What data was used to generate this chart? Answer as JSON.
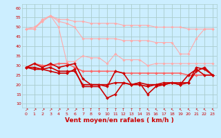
{
  "x": [
    0,
    1,
    2,
    3,
    4,
    5,
    6,
    7,
    8,
    9,
    10,
    11,
    12,
    13,
    14,
    15,
    16,
    17,
    18,
    19,
    20,
    21,
    22,
    23
  ],
  "series": [
    {
      "name": "line_top1",
      "color": "#ffaaaa",
      "linewidth": 0.8,
      "marker": "D",
      "markersize": 1.8,
      "values": [
        49,
        49,
        54,
        56,
        54,
        54,
        53,
        53,
        52,
        52,
        52,
        52,
        51,
        51,
        51,
        51,
        50,
        50,
        50,
        50,
        49,
        49,
        49,
        49
      ]
    },
    {
      "name": "line_top2",
      "color": "#ffaaaa",
      "linewidth": 0.8,
      "marker": "D",
      "markersize": 1.8,
      "values": [
        49,
        49,
        53,
        56,
        53,
        52,
        50,
        44,
        44,
        44,
        44,
        44,
        43,
        43,
        43,
        43,
        42,
        42,
        42,
        36,
        36,
        44,
        49,
        49
      ]
    },
    {
      "name": "line_top3",
      "color": "#ffaaaa",
      "linewidth": 0.8,
      "marker": "D",
      "markersize": 1.8,
      "values": [
        49,
        50,
        53,
        56,
        50,
        32,
        32,
        35,
        34,
        34,
        31,
        36,
        33,
        33,
        33,
        30,
        31,
        31,
        31,
        31,
        31,
        31,
        31,
        31
      ]
    },
    {
      "name": "line_mid1",
      "color": "#ff6666",
      "linewidth": 1.2,
      "marker": "D",
      "markersize": 2.0,
      "values": [
        29,
        31,
        30,
        30,
        31,
        31,
        29,
        27,
        27,
        27,
        27,
        27,
        26,
        26,
        26,
        26,
        26,
        26,
        26,
        26,
        25,
        25,
        25,
        25
      ]
    },
    {
      "name": "line_low1",
      "color": "#cc0000",
      "linewidth": 1.2,
      "marker": "D",
      "markersize": 2.0,
      "values": [
        29,
        31,
        29,
        31,
        29,
        30,
        31,
        23,
        20,
        20,
        20,
        21,
        21,
        20,
        20,
        19,
        20,
        21,
        21,
        21,
        21,
        27,
        29,
        25
      ]
    },
    {
      "name": "line_low2",
      "color": "#cc0000",
      "linewidth": 1.2,
      "marker": "D",
      "markersize": 2.0,
      "values": [
        29,
        29,
        28,
        29,
        27,
        27,
        27,
        20,
        20,
        20,
        19,
        27,
        26,
        20,
        21,
        15,
        19,
        20,
        21,
        20,
        21,
        29,
        28,
        25
      ]
    },
    {
      "name": "line_low3",
      "color": "#cc0000",
      "linewidth": 1.2,
      "marker": "D",
      "markersize": 2.0,
      "values": [
        29,
        28,
        28,
        27,
        26,
        26,
        28,
        19,
        19,
        19,
        13,
        15,
        21,
        20,
        21,
        20,
        20,
        20,
        21,
        20,
        25,
        28,
        25,
        25
      ]
    }
  ],
  "xlim": [
    -0.5,
    23.5
  ],
  "ylim": [
    8,
    62
  ],
  "yticks": [
    10,
    15,
    20,
    25,
    30,
    35,
    40,
    45,
    50,
    55,
    60
  ],
  "xticks": [
    0,
    1,
    2,
    3,
    4,
    5,
    6,
    7,
    8,
    9,
    10,
    11,
    12,
    13,
    14,
    15,
    16,
    17,
    18,
    19,
    20,
    21,
    22,
    23
  ],
  "arrows": [
    "↗",
    "↗",
    "↗",
    "↗",
    "↗",
    "↗",
    "↗",
    "↑",
    "↑",
    "↑",
    "↑",
    "↑",
    "↑",
    "↑",
    "↑",
    "↖",
    "↖",
    "↖",
    "↖",
    "↖",
    "↖",
    "↖",
    "↖",
    "↖"
  ],
  "xlabel": "Vent moyen/en rafales ( km/h )",
  "bg_color": "#cceeff",
  "grid_color": "#aacccc",
  "label_color": "#cc0000",
  "xlabel_color": "#cc0000",
  "tick_fontsize": 4.5,
  "xlabel_fontsize": 6.5
}
